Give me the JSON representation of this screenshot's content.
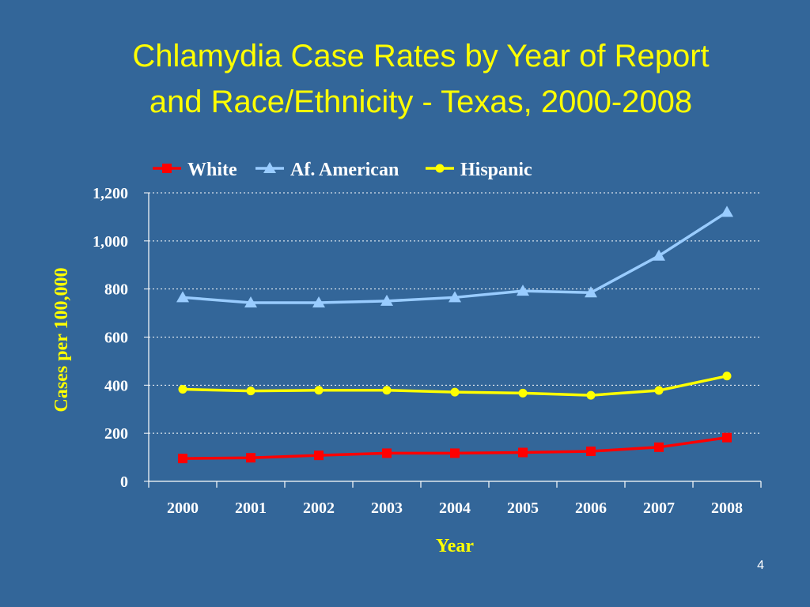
{
  "slide": {
    "title_line1": "Chlamydia Case Rates by Year of Report",
    "title_line2": "and Race/Ethnicity - Texas, 2000-2008",
    "page_number": "4"
  },
  "colors": {
    "background": "#336699",
    "title": "#FFFF00",
    "axis_text": "#FFFFFF",
    "grid": "#FFFFFF",
    "white_series": "#FF0000",
    "af_american_series": "#99CCFF",
    "hispanic_series": "#FFFF00"
  },
  "chart_data": {
    "type": "line",
    "xlabel": "Year",
    "ylabel": "Cases per 100,000",
    "x": [
      "2000",
      "2001",
      "2002",
      "2003",
      "2004",
      "2005",
      "2006",
      "2007",
      "2008"
    ],
    "ylim": [
      0,
      1200
    ],
    "yticks": [
      "0",
      "200",
      "400",
      "600",
      "800",
      "1,000",
      "1,200"
    ],
    "grid": "horizontal dotted",
    "legend_position": "top",
    "series": [
      {
        "name": "White",
        "marker": "square",
        "color": "#FF0000",
        "values": [
          95,
          98,
          108,
          117,
          117,
          120,
          125,
          142,
          182
        ]
      },
      {
        "name": "Af. American",
        "marker": "triangle",
        "color": "#99CCFF",
        "values": [
          765,
          743,
          743,
          750,
          765,
          792,
          785,
          938,
          1120
        ]
      },
      {
        "name": "Hispanic",
        "marker": "circle",
        "color": "#FFFF00",
        "values": [
          383,
          376,
          379,
          379,
          371,
          367,
          358,
          378,
          438
        ]
      }
    ]
  }
}
